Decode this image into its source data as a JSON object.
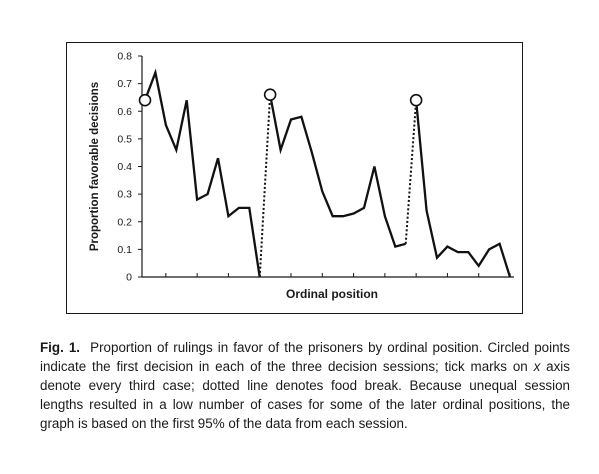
{
  "chart_data": {
    "type": "line",
    "xlabel": "Ordinal position",
    "ylabel": "Proportion favorable decisions",
    "ylim": [
      0,
      0.8
    ],
    "yticks": [
      "0",
      "0.1",
      "0.2",
      "0.3",
      "0.4",
      "0.5",
      "0.6",
      "0.7",
      "0.8"
    ],
    "grid": false,
    "sessions": [
      {
        "points": [
          [
            1,
            0.64
          ],
          [
            2,
            0.74
          ],
          [
            3,
            0.55
          ],
          [
            4,
            0.46
          ],
          [
            5,
            0.64
          ],
          [
            6,
            0.28
          ],
          [
            7,
            0.3
          ],
          [
            8,
            0.43
          ],
          [
            9,
            0.22
          ],
          [
            10,
            0.25
          ],
          [
            11,
            0.25
          ],
          [
            12,
            0.0
          ]
        ]
      },
      {
        "points": [
          [
            13,
            0.66
          ],
          [
            14,
            0.46
          ],
          [
            15,
            0.57
          ],
          [
            16,
            0.58
          ],
          [
            17,
            0.45
          ],
          [
            18,
            0.31
          ],
          [
            19,
            0.22
          ],
          [
            20,
            0.22
          ],
          [
            21,
            0.23
          ],
          [
            22,
            0.25
          ],
          [
            23,
            0.4
          ],
          [
            24,
            0.22
          ],
          [
            25,
            0.11
          ],
          [
            26,
            0.12
          ]
        ]
      },
      {
        "points": [
          [
            27,
            0.64
          ],
          [
            28,
            0.24
          ],
          [
            29,
            0.07
          ],
          [
            30,
            0.11
          ],
          [
            31,
            0.09
          ],
          [
            32,
            0.09
          ],
          [
            33,
            0.04
          ],
          [
            34,
            0.1
          ],
          [
            35,
            0.12
          ],
          [
            36,
            0.0
          ]
        ]
      }
    ],
    "food_breaks": [
      [
        12,
        13
      ],
      [
        26,
        27
      ]
    ],
    "first_decisions": [
      1,
      13,
      27
    ],
    "x_tick_every": 3,
    "x_max": 36
  },
  "caption": {
    "label": "Fig. 1.",
    "text_before_x": "Proportion of rulings in favor of the prisoners by ordinal position. Circled points indicate the first decision in each of the three decision sessions; tick marks on ",
    "x_word": "x",
    "text_after_x": " axis denote every third case; dotted line denotes food break. Because unequal session lengths resulted in a low number of cases for some of the later ordinal positions, the graph is based on the first 95% of the data from each session."
  }
}
